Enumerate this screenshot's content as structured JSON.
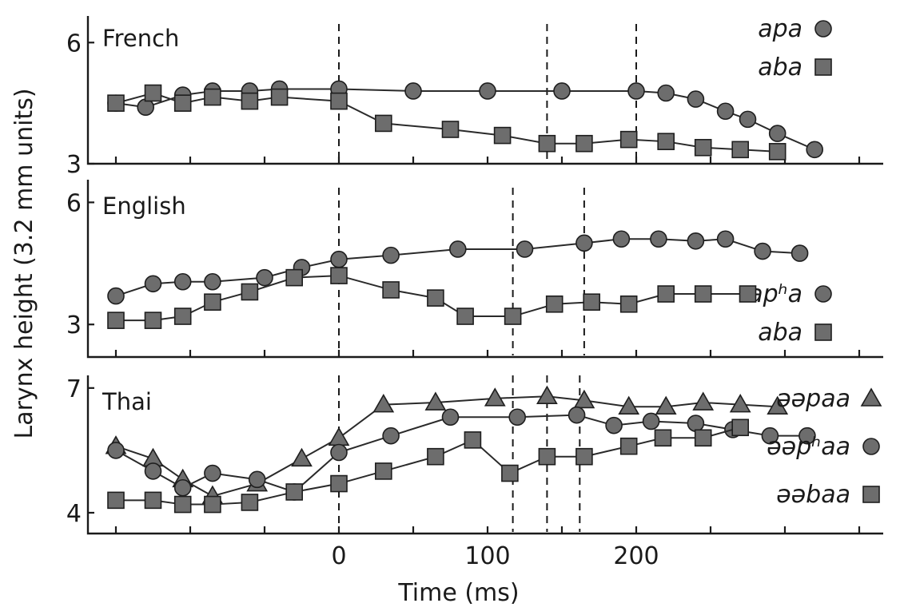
{
  "chart_data": {
    "type": "line",
    "xlabel": "Time (ms)",
    "ylabel": "Larynx height (3.2 mm units)",
    "xticks": [
      0,
      100,
      200
    ],
    "panels": [
      {
        "title": "French",
        "ylim": [
          3,
          6.5
        ],
        "yticks": [
          3,
          6
        ],
        "event_markers": [
          0,
          140,
          200
        ],
        "series": [
          {
            "name": "apa",
            "marker": "circle",
            "points": [
              [
                -150,
                4.5
              ],
              [
                -130,
                4.4
              ],
              [
                -105,
                4.7
              ],
              [
                -85,
                4.8
              ],
              [
                -60,
                4.8
              ],
              [
                -40,
                4.85
              ],
              [
                0,
                4.85
              ],
              [
                50,
                4.8
              ],
              [
                100,
                4.8
              ],
              [
                150,
                4.8
              ],
              [
                200,
                4.8
              ],
              [
                220,
                4.75
              ],
              [
                240,
                4.6
              ],
              [
                260,
                4.3
              ],
              [
                275,
                4.1
              ],
              [
                295,
                3.75
              ],
              [
                320,
                3.35
              ]
            ]
          },
          {
            "name": "aba",
            "marker": "square",
            "points": [
              [
                -150,
                4.5
              ],
              [
                -125,
                4.75
              ],
              [
                -105,
                4.5
              ],
              [
                -85,
                4.65
              ],
              [
                -60,
                4.55
              ],
              [
                -40,
                4.65
              ],
              [
                0,
                4.55
              ],
              [
                30,
                4.0
              ],
              [
                75,
                3.85
              ],
              [
                110,
                3.7
              ],
              [
                140,
                3.5
              ],
              [
                165,
                3.5
              ],
              [
                195,
                3.6
              ],
              [
                220,
                3.55
              ],
              [
                245,
                3.4
              ],
              [
                270,
                3.35
              ],
              [
                295,
                3.3
              ]
            ]
          }
        ]
      },
      {
        "title": "English",
        "ylim": [
          2.2,
          6.4
        ],
        "yticks": [
          3,
          6
        ],
        "event_markers": [
          0,
          117,
          165
        ],
        "series": [
          {
            "name": "apʰa",
            "marker": "circle",
            "points": [
              [
                -150,
                3.7
              ],
              [
                -125,
                4.0
              ],
              [
                -105,
                4.05
              ],
              [
                -85,
                4.05
              ],
              [
                -50,
                4.15
              ],
              [
                -25,
                4.4
              ],
              [
                0,
                4.6
              ],
              [
                35,
                4.7
              ],
              [
                80,
                4.85
              ],
              [
                125,
                4.85
              ],
              [
                165,
                5.0
              ],
              [
                190,
                5.1
              ],
              [
                215,
                5.1
              ],
              [
                240,
                5.05
              ],
              [
                260,
                5.1
              ],
              [
                285,
                4.8
              ],
              [
                310,
                4.75
              ]
            ]
          },
          {
            "name": "aba",
            "marker": "square",
            "points": [
              [
                -150,
                3.1
              ],
              [
                -125,
                3.1
              ],
              [
                -105,
                3.2
              ],
              [
                -85,
                3.55
              ],
              [
                -60,
                3.8
              ],
              [
                -30,
                4.15
              ],
              [
                0,
                4.2
              ],
              [
                35,
                3.85
              ],
              [
                65,
                3.65
              ],
              [
                85,
                3.2
              ],
              [
                117,
                3.2
              ],
              [
                145,
                3.5
              ],
              [
                170,
                3.55
              ],
              [
                195,
                3.5
              ],
              [
                220,
                3.75
              ],
              [
                245,
                3.75
              ],
              [
                275,
                3.75
              ]
            ]
          }
        ]
      },
      {
        "title": "Thai",
        "ylim": [
          3.5,
          7.15
        ],
        "yticks": [
          4,
          7
        ],
        "event_markers": [
          0,
          117,
          140,
          162
        ],
        "series": [
          {
            "name": "əəpaa",
            "marker": "triangle",
            "points": [
              [
                -150,
                5.6
              ],
              [
                -125,
                5.3
              ],
              [
                -105,
                4.8
              ],
              [
                -85,
                4.4
              ],
              [
                -55,
                4.7
              ],
              [
                -25,
                5.3
              ],
              [
                0,
                5.8
              ],
              [
                30,
                6.6
              ],
              [
                65,
                6.65
              ],
              [
                105,
                6.75
              ],
              [
                140,
                6.8
              ],
              [
                165,
                6.7
              ],
              [
                195,
                6.55
              ],
              [
                220,
                6.55
              ],
              [
                245,
                6.65
              ],
              [
                270,
                6.6
              ],
              [
                295,
                6.55
              ]
            ]
          },
          {
            "name": "əəpʰaa",
            "marker": "circle",
            "points": [
              [
                -150,
                5.5
              ],
              [
                -125,
                5.0
              ],
              [
                -105,
                4.6
              ],
              [
                -85,
                4.95
              ],
              [
                -55,
                4.8
              ],
              [
                -30,
                4.5
              ],
              [
                0,
                5.45
              ],
              [
                35,
                5.85
              ],
              [
                75,
                6.3
              ],
              [
                120,
                6.3
              ],
              [
                160,
                6.35
              ],
              [
                185,
                6.1
              ],
              [
                210,
                6.2
              ],
              [
                240,
                6.15
              ],
              [
                265,
                6.0
              ],
              [
                290,
                5.85
              ],
              [
                315,
                5.85
              ]
            ]
          },
          {
            "name": "əəbaa",
            "marker": "square",
            "points": [
              [
                -150,
                4.3
              ],
              [
                -125,
                4.3
              ],
              [
                -105,
                4.2
              ],
              [
                -85,
                4.2
              ],
              [
                -60,
                4.25
              ],
              [
                -30,
                4.5
              ],
              [
                0,
                4.7
              ],
              [
                30,
                5.0
              ],
              [
                65,
                5.35
              ],
              [
                90,
                5.75
              ],
              [
                115,
                4.95
              ],
              [
                140,
                5.35
              ],
              [
                165,
                5.35
              ],
              [
                195,
                5.6
              ],
              [
                218,
                5.8
              ],
              [
                245,
                5.8
              ],
              [
                270,
                6.05
              ]
            ]
          }
        ]
      }
    ]
  }
}
